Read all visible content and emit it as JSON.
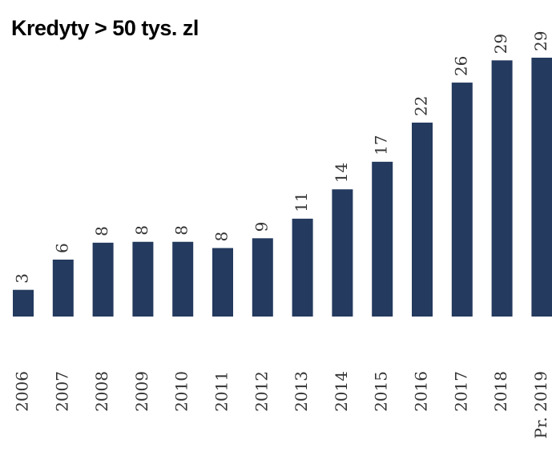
{
  "chart_data": {
    "type": "bar",
    "title": "Kredyty > 50 tys. zl",
    "categories": [
      "2006",
      "2007",
      "2008",
      "2009",
      "2010",
      "2011",
      "2012",
      "2013",
      "2014",
      "2015",
      "2016",
      "2017",
      "2018",
      "Pr. 2019"
    ],
    "values": [
      3.0,
      6.4,
      8.3,
      8.4,
      8.4,
      7.7,
      8.8,
      11.0,
      14.3,
      17.4,
      21.8,
      26.3,
      28.8,
      29.1
    ],
    "value_labels": [
      "3",
      "6",
      "8",
      "8",
      "8",
      "8",
      "9",
      "11",
      "14",
      "17",
      "22",
      "26",
      "29",
      "29"
    ],
    "color": "#243a5e"
  }
}
